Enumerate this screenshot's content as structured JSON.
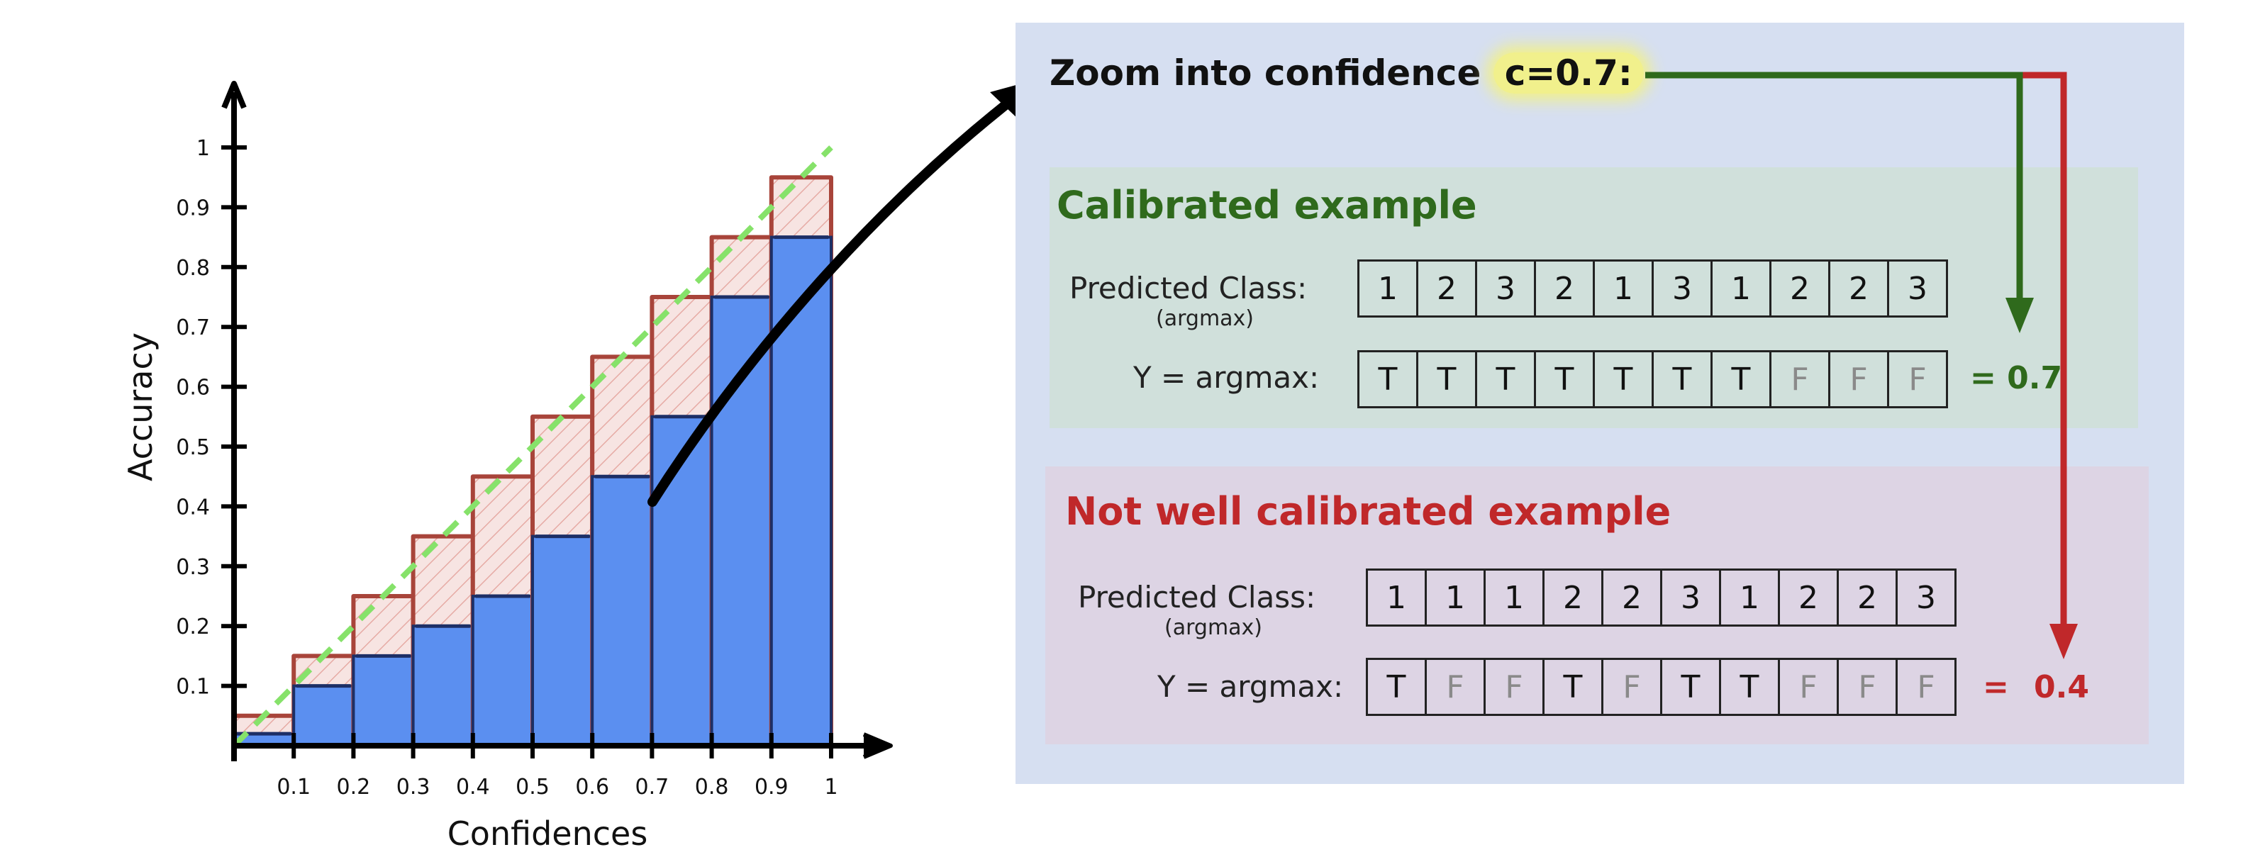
{
  "chart_data": {
    "type": "bar",
    "xlabel": "Confidences",
    "ylabel": "Accuracy",
    "x_ticks": [
      "0.1",
      "0.2",
      "0.3",
      "0.4",
      "0.5",
      "0.6",
      "0.7",
      "0.8",
      "0.9",
      "1"
    ],
    "y_ticks": [
      "0.1",
      "0.2",
      "0.3",
      "0.4",
      "0.5",
      "0.6",
      "0.7",
      "0.8",
      "0.9",
      "1"
    ],
    "xlim": [
      0,
      1
    ],
    "ylim": [
      0,
      1
    ],
    "bin_edges": [
      0,
      0.1,
      0.2,
      0.3,
      0.4,
      0.5,
      0.6,
      0.7,
      0.8,
      0.9,
      1.0
    ],
    "series": [
      {
        "role": "outputs",
        "values": [
          0.02,
          0.1,
          0.15,
          0.2,
          0.25,
          0.35,
          0.45,
          0.55,
          0.75,
          0.85
        ],
        "color": "#5b8ff0"
      },
      {
        "role": "gap",
        "values": [
          0.05,
          0.15,
          0.25,
          0.35,
          0.45,
          0.55,
          0.65,
          0.75,
          0.85,
          0.95
        ],
        "color": "#a8443a"
      }
    ],
    "diagonal": {
      "x": [
        0,
        1
      ],
      "y": [
        0,
        1
      ],
      "color": "#86e26a",
      "style": "dashed"
    },
    "grid": false
  },
  "panel": {
    "title_prefix": "Zoom into confidence ",
    "title_highlight": "c=0.7:",
    "calibrated": {
      "heading": "Calibrated example",
      "predicted_label": "Predicted Class:",
      "predicted_sub": "(argmax)",
      "predicted": [
        "1",
        "2",
        "3",
        "2",
        "1",
        "3",
        "1",
        "2",
        "2",
        "3"
      ],
      "y_label": "Y = argmax:",
      "y": [
        "T",
        "T",
        "T",
        "T",
        "T",
        "T",
        "T",
        "F",
        "F",
        "F"
      ],
      "result": "= 0.7"
    },
    "not_calibrated": {
      "heading": "Not well calibrated example",
      "predicted_label": "Predicted Class:",
      "predicted_sub": "(argmax)",
      "predicted": [
        "1",
        "1",
        "1",
        "2",
        "2",
        "3",
        "1",
        "2",
        "2",
        "3"
      ],
      "y_label": "Y = argmax:",
      "y": [
        "T",
        "F",
        "F",
        "T",
        "F",
        "T",
        "T",
        "F",
        "F",
        "F"
      ],
      "result_eq": "=",
      "result": "0.4"
    }
  },
  "colors": {
    "panel_bg": "#d6dff1",
    "green_bg": "#d0e0db",
    "red_bg": "#ddd4e4",
    "green": "#2f6a1c",
    "red": "#c0282a",
    "highlight": "#f1f08c"
  }
}
